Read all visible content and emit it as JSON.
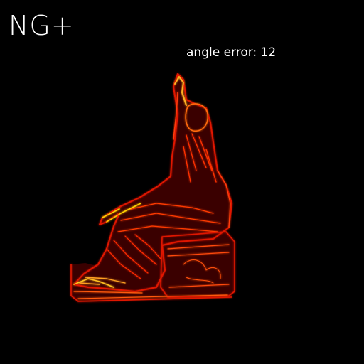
{
  "header": {
    "method_label": "NG+"
  },
  "metrics": {
    "angle_error_text": "angle error: 12"
  },
  "image": {
    "subject_icon": "seated-statue-error-map",
    "background_color": "#000000",
    "error_low_color": "#3a0000",
    "error_mid_color": "#e01800",
    "error_high_color": "#ffd000"
  }
}
